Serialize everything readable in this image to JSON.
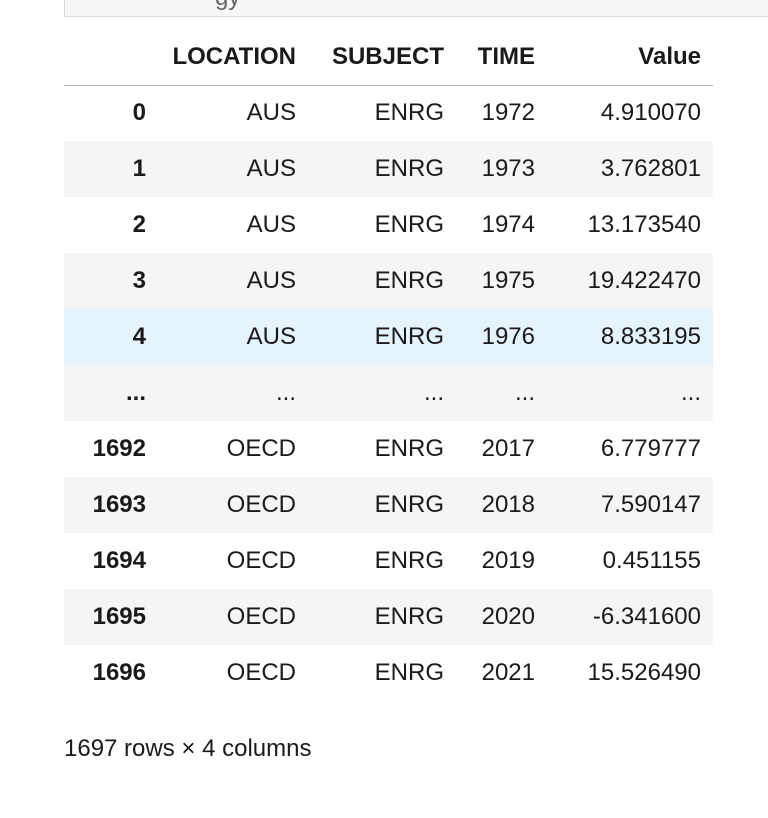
{
  "prev_cell": {
    "fragment": "gy"
  },
  "dataframe": {
    "columns": [
      "",
      "LOCATION",
      "SUBJECT",
      "TIME",
      "Value"
    ],
    "rows": [
      {
        "index": "0",
        "location": "AUS",
        "subject": "ENRG",
        "time": "1972",
        "value": "4.910070"
      },
      {
        "index": "1",
        "location": "AUS",
        "subject": "ENRG",
        "time": "1973",
        "value": "3.762801"
      },
      {
        "index": "2",
        "location": "AUS",
        "subject": "ENRG",
        "time": "1974",
        "value": "13.173540"
      },
      {
        "index": "3",
        "location": "AUS",
        "subject": "ENRG",
        "time": "1975",
        "value": "19.422470"
      },
      {
        "index": "4",
        "location": "AUS",
        "subject": "ENRG",
        "time": "1976",
        "value": "8.833195"
      },
      {
        "index": "...",
        "location": "...",
        "subject": "...",
        "time": "...",
        "value": "..."
      },
      {
        "index": "1692",
        "location": "OECD",
        "subject": "ENRG",
        "time": "2017",
        "value": "6.779777"
      },
      {
        "index": "1693",
        "location": "OECD",
        "subject": "ENRG",
        "time": "2018",
        "value": "7.590147"
      },
      {
        "index": "1694",
        "location": "OECD",
        "subject": "ENRG",
        "time": "2019",
        "value": "0.451155"
      },
      {
        "index": "1695",
        "location": "OECD",
        "subject": "ENRG",
        "time": "2020",
        "value": "-6.341600"
      },
      {
        "index": "1696",
        "location": "OECD",
        "subject": "ENRG",
        "time": "2021",
        "value": "15.526490"
      }
    ],
    "footer": "1697 rows × 4 columns"
  },
  "colors": {
    "stripe": "#f5f5f5",
    "hover": "#e5f3fd",
    "header_border": "#b5b5b5"
  }
}
